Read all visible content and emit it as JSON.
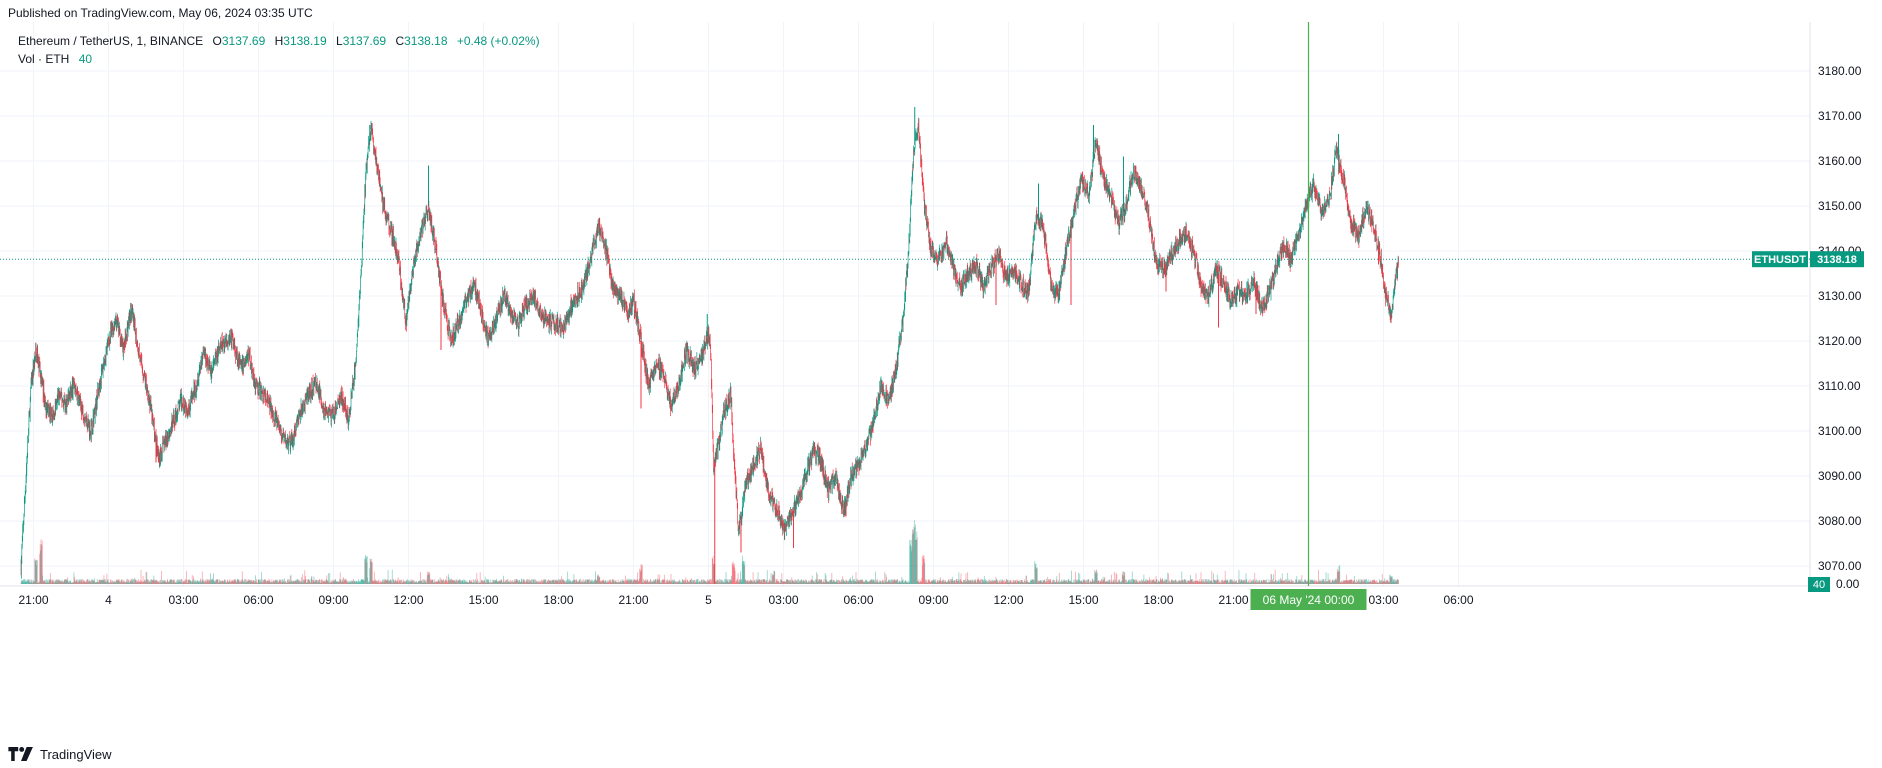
{
  "published": "Published on TradingView.com, May 06, 2024 03:35 UTC",
  "legend": {
    "title": "Ethereum / TetherUS, 1, BINANCE",
    "o_label": "O",
    "o_value": "3137.69",
    "h_label": "H",
    "h_value": "3138.19",
    "l_label": "L",
    "l_value": "3137.69",
    "c_label": "C",
    "c_value": "3138.18",
    "change": "+0.48 (+0.02%)",
    "vol_label": "Vol · ETH",
    "vol_value": "40"
  },
  "footer": {
    "brand": "TradingView"
  },
  "colors": {
    "up": "#089981",
    "down": "#f23645",
    "grid": "#f0f3fa",
    "cursor": "#4caf50",
    "axis_text": "#131722"
  },
  "chart_data": {
    "type": "candlestick",
    "symbol": "ETHUSDT",
    "last_price": 3138.18,
    "last_price_label": "3138.18",
    "volume_label": "40",
    "volume_axis_label": "0.00",
    "ylim": [
      3066,
      3186
    ],
    "y_ticks": [
      3070,
      3080,
      3090,
      3100,
      3110,
      3120,
      3130,
      3140,
      3150,
      3160,
      3170,
      3180
    ],
    "y_tick_labels": [
      "3070.00",
      "3080.00",
      "3090.00",
      "3100.00",
      "3110.00",
      "3120.00",
      "3130.00",
      "3140.00",
      "3150.00",
      "3160.00",
      "3170.00",
      "3180.00"
    ],
    "x_ticks": [
      "21:00",
      "4",
      "03:00",
      "06:00",
      "09:00",
      "12:00",
      "15:00",
      "18:00",
      "21:00",
      "5",
      "03:00",
      "06:00",
      "09:00",
      "12:00",
      "15:00",
      "18:00",
      "21:00",
      "03:00",
      "06:00"
    ],
    "x_tick_hours": [
      0,
      3,
      6,
      9,
      12,
      15,
      18,
      21,
      24,
      27,
      30,
      33,
      36,
      39,
      42,
      45,
      48,
      54,
      57
    ],
    "crosshair_label": "06 May '24   00:00",
    "crosshair_hour": 51,
    "last_hour": 54.6,
    "price_path": [
      [
        -0.5,
        3070
      ],
      [
        -0.3,
        3090
      ],
      [
        -0.1,
        3110
      ],
      [
        0.1,
        3118
      ],
      [
        0.3,
        3112
      ],
      [
        0.5,
        3105
      ],
      [
        0.8,
        3103
      ],
      [
        1.0,
        3108
      ],
      [
        1.3,
        3106
      ],
      [
        1.6,
        3110
      ],
      [
        2.0,
        3104
      ],
      [
        2.3,
        3100
      ],
      [
        2.7,
        3112
      ],
      [
        3.0,
        3120
      ],
      [
        3.3,
        3125
      ],
      [
        3.6,
        3118
      ],
      [
        3.9,
        3127
      ],
      [
        4.3,
        3115
      ],
      [
        4.6,
        3108
      ],
      [
        5.0,
        3094
      ],
      [
        5.3,
        3098
      ],
      [
        5.6,
        3102
      ],
      [
        5.9,
        3107
      ],
      [
        6.2,
        3105
      ],
      [
        6.5,
        3110
      ],
      [
        6.8,
        3118
      ],
      [
        7.1,
        3113
      ],
      [
        7.5,
        3119
      ],
      [
        7.9,
        3121
      ],
      [
        8.3,
        3114
      ],
      [
        8.6,
        3117
      ],
      [
        8.9,
        3110
      ],
      [
        9.2,
        3108
      ],
      [
        9.6,
        3104
      ],
      [
        10.0,
        3098
      ],
      [
        10.3,
        3097
      ],
      [
        10.6,
        3103
      ],
      [
        11.0,
        3108
      ],
      [
        11.3,
        3111
      ],
      [
        11.6,
        3105
      ],
      [
        12.0,
        3103
      ],
      [
        12.3,
        3108
      ],
      [
        12.6,
        3102
      ],
      [
        12.9,
        3116
      ],
      [
        13.1,
        3135
      ],
      [
        13.3,
        3158
      ],
      [
        13.5,
        3167
      ],
      [
        13.7,
        3160
      ],
      [
        14.0,
        3150
      ],
      [
        14.3,
        3145
      ],
      [
        14.6,
        3138
      ],
      [
        14.9,
        3124
      ],
      [
        15.2,
        3137
      ],
      [
        15.5,
        3144
      ],
      [
        15.8,
        3150
      ],
      [
        16.1,
        3140
      ],
      [
        16.4,
        3128
      ],
      [
        16.7,
        3120
      ],
      [
        17.0,
        3124
      ],
      [
        17.3,
        3129
      ],
      [
        17.6,
        3133
      ],
      [
        17.9,
        3127
      ],
      [
        18.2,
        3120
      ],
      [
        18.5,
        3125
      ],
      [
        18.8,
        3130
      ],
      [
        19.1,
        3126
      ],
      [
        19.4,
        3124
      ],
      [
        19.7,
        3128
      ],
      [
        20.0,
        3130
      ],
      [
        20.4,
        3125
      ],
      [
        20.8,
        3124
      ],
      [
        21.2,
        3123
      ],
      [
        21.6,
        3129
      ],
      [
        22.0,
        3132
      ],
      [
        22.3,
        3139
      ],
      [
        22.6,
        3146
      ],
      [
        22.9,
        3140
      ],
      [
        23.2,
        3132
      ],
      [
        23.5,
        3130
      ],
      [
        23.8,
        3126
      ],
      [
        24.0,
        3129
      ],
      [
        24.3,
        3120
      ],
      [
        24.6,
        3110
      ],
      [
        24.9,
        3115
      ],
      [
        25.2,
        3113
      ],
      [
        25.5,
        3106
      ],
      [
        25.8,
        3110
      ],
      [
        26.1,
        3118
      ],
      [
        26.4,
        3114
      ],
      [
        26.7,
        3116
      ],
      [
        27.0,
        3122
      ],
      [
        27.1,
        3116
      ],
      [
        27.2,
        3092
      ],
      [
        27.4,
        3097
      ],
      [
        27.6,
        3104
      ],
      [
        27.9,
        3108
      ],
      [
        28.0,
        3095
      ],
      [
        28.2,
        3078
      ],
      [
        28.5,
        3088
      ],
      [
        28.8,
        3093
      ],
      [
        29.1,
        3096
      ],
      [
        29.4,
        3086
      ],
      [
        29.7,
        3083
      ],
      [
        30.0,
        3078
      ],
      [
        30.3,
        3081
      ],
      [
        30.6,
        3085
      ],
      [
        30.9,
        3090
      ],
      [
        31.2,
        3096
      ],
      [
        31.5,
        3093
      ],
      [
        31.8,
        3087
      ],
      [
        32.1,
        3090
      ],
      [
        32.4,
        3082
      ],
      [
        32.7,
        3090
      ],
      [
        33.0,
        3093
      ],
      [
        33.3,
        3096
      ],
      [
        33.6,
        3102
      ],
      [
        33.9,
        3110
      ],
      [
        34.2,
        3106
      ],
      [
        34.5,
        3114
      ],
      [
        34.8,
        3126
      ],
      [
        35.0,
        3140
      ],
      [
        35.2,
        3162
      ],
      [
        35.4,
        3168
      ],
      [
        35.6,
        3152
      ],
      [
        35.9,
        3140
      ],
      [
        36.2,
        3138
      ],
      [
        36.5,
        3142
      ],
      [
        36.8,
        3136
      ],
      [
        37.1,
        3132
      ],
      [
        37.4,
        3135
      ],
      [
        37.7,
        3137
      ],
      [
        38.0,
        3132
      ],
      [
        38.3,
        3136
      ],
      [
        38.6,
        3139
      ],
      [
        38.9,
        3134
      ],
      [
        39.2,
        3136
      ],
      [
        39.5,
        3133
      ],
      [
        39.8,
        3131
      ],
      [
        40.1,
        3148
      ],
      [
        40.4,
        3145
      ],
      [
        40.7,
        3132
      ],
      [
        41.0,
        3130
      ],
      [
        41.3,
        3140
      ],
      [
        41.6,
        3148
      ],
      [
        41.9,
        3156
      ],
      [
        42.2,
        3152
      ],
      [
        42.5,
        3164
      ],
      [
        42.8,
        3156
      ],
      [
        43.1,
        3152
      ],
      [
        43.4,
        3146
      ],
      [
        43.7,
        3150
      ],
      [
        44.0,
        3158
      ],
      [
        44.3,
        3154
      ],
      [
        44.6,
        3148
      ],
      [
        44.9,
        3138
      ],
      [
        45.2,
        3136
      ],
      [
        45.5,
        3139
      ],
      [
        45.8,
        3142
      ],
      [
        46.1,
        3144
      ],
      [
        46.4,
        3140
      ],
      [
        46.7,
        3132
      ],
      [
        47.0,
        3130
      ],
      [
        47.3,
        3136
      ],
      [
        47.6,
        3133
      ],
      [
        47.9,
        3129
      ],
      [
        48.2,
        3131
      ],
      [
        48.5,
        3130
      ],
      [
        48.8,
        3134
      ],
      [
        49.1,
        3127
      ],
      [
        49.4,
        3130
      ],
      [
        49.7,
        3136
      ],
      [
        50.0,
        3141
      ],
      [
        50.3,
        3138
      ],
      [
        50.6,
        3144
      ],
      [
        50.9,
        3150
      ],
      [
        51.2,
        3155
      ],
      [
        51.5,
        3149
      ],
      [
        51.8,
        3150
      ],
      [
        52.1,
        3162
      ],
      [
        52.4,
        3156
      ],
      [
        52.7,
        3146
      ],
      [
        53.0,
        3143
      ],
      [
        53.3,
        3150
      ],
      [
        53.6,
        3146
      ],
      [
        53.9,
        3138
      ],
      [
        54.1,
        3130
      ],
      [
        54.3,
        3126
      ],
      [
        54.5,
        3134
      ],
      [
        54.6,
        3138.18
      ]
    ],
    "wicks": [
      [
        4.9,
        3093
      ],
      [
        5.0,
        3093
      ],
      [
        13.45,
        3168
      ],
      [
        13.5,
        3168
      ],
      [
        15.8,
        3159
      ],
      [
        16.3,
        3118
      ],
      [
        24.3,
        3105
      ],
      [
        26.95,
        3126
      ],
      [
        27.25,
        3066
      ],
      [
        28.3,
        3073
      ],
      [
        30.4,
        3074
      ],
      [
        32.5,
        3081
      ],
      [
        35.25,
        3172
      ],
      [
        38.5,
        3128
      ],
      [
        40.2,
        3155
      ],
      [
        41.5,
        3128
      ],
      [
        42.4,
        3168
      ],
      [
        43.6,
        3161
      ],
      [
        45.3,
        3131
      ],
      [
        47.4,
        3123
      ],
      [
        48.9,
        3126
      ],
      [
        52.2,
        3166
      ],
      [
        53.8,
        3137
      ],
      [
        54.3,
        3124
      ]
    ],
    "volume_spikes": [
      [
        0.1,
        8
      ],
      [
        0.3,
        14
      ],
      [
        13.3,
        9
      ],
      [
        13.5,
        8
      ],
      [
        15.8,
        4
      ],
      [
        22.6,
        3
      ],
      [
        24.3,
        6
      ],
      [
        27.2,
        9
      ],
      [
        28.0,
        7
      ],
      [
        28.4,
        9
      ],
      [
        29.6,
        4
      ],
      [
        35.1,
        14
      ],
      [
        35.2,
        25
      ],
      [
        35.3,
        20
      ],
      [
        35.6,
        9
      ],
      [
        40.1,
        7
      ],
      [
        42.5,
        5
      ],
      [
        43.6,
        4
      ],
      [
        52.2,
        6
      ],
      [
        54.3,
        3
      ]
    ]
  }
}
